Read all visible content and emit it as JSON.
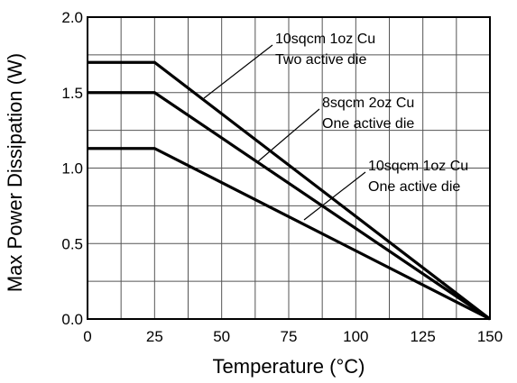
{
  "chart_data": {
    "type": "line",
    "title": "",
    "xlabel": "Temperature (°C)",
    "ylabel": "Max Power Dissipation (W)",
    "xlim": [
      0,
      150
    ],
    "ylim": [
      0,
      2.0
    ],
    "xticks": [
      "0",
      "25",
      "50",
      "75",
      "100",
      "125",
      "150"
    ],
    "yticks": [
      "0.0",
      "0.5",
      "1.0",
      "1.5",
      "2.0"
    ],
    "grid": true,
    "legend": "none",
    "series": [
      {
        "name": "10sqcm 1oz Cu Two active die",
        "x": [
          0,
          25,
          150
        ],
        "y": [
          1.7,
          1.7,
          0.0
        ]
      },
      {
        "name": "8sqcm 2oz Cu One active die",
        "x": [
          0,
          25,
          150
        ],
        "y": [
          1.5,
          1.5,
          0.0
        ]
      },
      {
        "name": "10sqcm 1oz Cu One active die",
        "x": [
          0,
          25,
          150
        ],
        "y": [
          1.13,
          1.13,
          0.0
        ]
      }
    ],
    "annotations": [
      {
        "line1": "10sqcm 1oz Cu",
        "line2": "Two active die"
      },
      {
        "line1": "8sqcm 2oz Cu",
        "line2": "One active die"
      },
      {
        "line1": "10sqcm 1oz Cu",
        "line2": "One active die"
      }
    ]
  }
}
